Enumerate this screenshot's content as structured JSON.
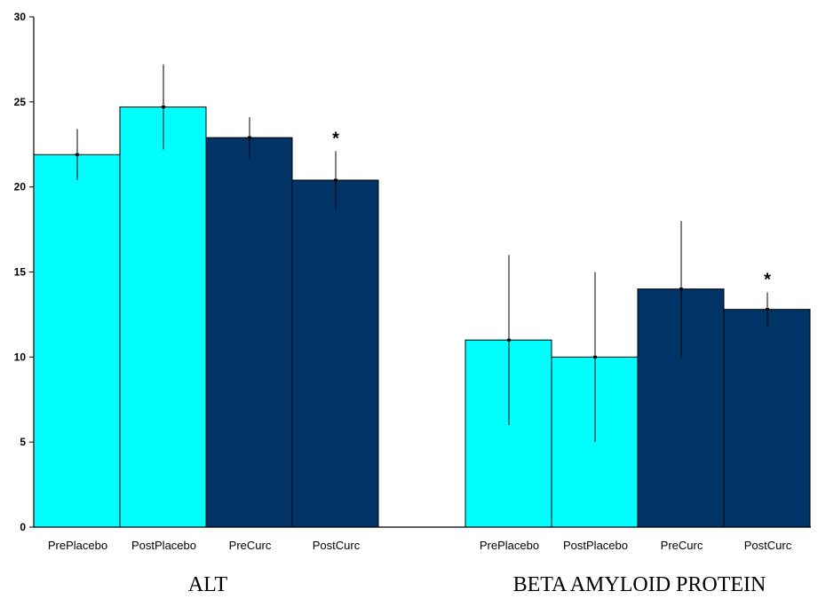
{
  "chart_data": {
    "type": "bar",
    "title": "",
    "xlabel": "",
    "ylabel": "",
    "ylim": [
      0,
      30
    ],
    "yticks": [
      0,
      5,
      10,
      15,
      20,
      25,
      30
    ],
    "grid": false,
    "legend": "none",
    "colors": {
      "placebo": "#00FFFF",
      "curc": "#003366",
      "edge": "#000000"
    },
    "groups": [
      {
        "label": "ALT",
        "bars": [
          {
            "category": "PrePlacebo",
            "value": 21.9,
            "error": 1.5,
            "color": "placebo",
            "mark": ""
          },
          {
            "category": "PostPlacebo",
            "value": 24.7,
            "error": 2.5,
            "color": "placebo",
            "mark": ""
          },
          {
            "category": "PreCurc",
            "value": 22.9,
            "error": 1.2,
            "color": "curc",
            "mark": ""
          },
          {
            "category": "PostCurc",
            "value": 20.4,
            "error": 1.7,
            "color": "curc",
            "mark": "*"
          }
        ]
      },
      {
        "label": "BETA AMYLOID PROTEIN",
        "bars": [
          {
            "category": "PrePlacebo",
            "value": 11.0,
            "error": 5.0,
            "color": "placebo",
            "mark": ""
          },
          {
            "category": "PostPlacebo",
            "value": 10.0,
            "error": 5.0,
            "color": "placebo",
            "mark": ""
          },
          {
            "category": "PreCurc",
            "value": 14.0,
            "error": 4.0,
            "color": "curc",
            "mark": ""
          },
          {
            "category": "PostCurc",
            "value": 12.8,
            "error": 1.0,
            "color": "curc",
            "mark": "*"
          }
        ]
      }
    ]
  }
}
